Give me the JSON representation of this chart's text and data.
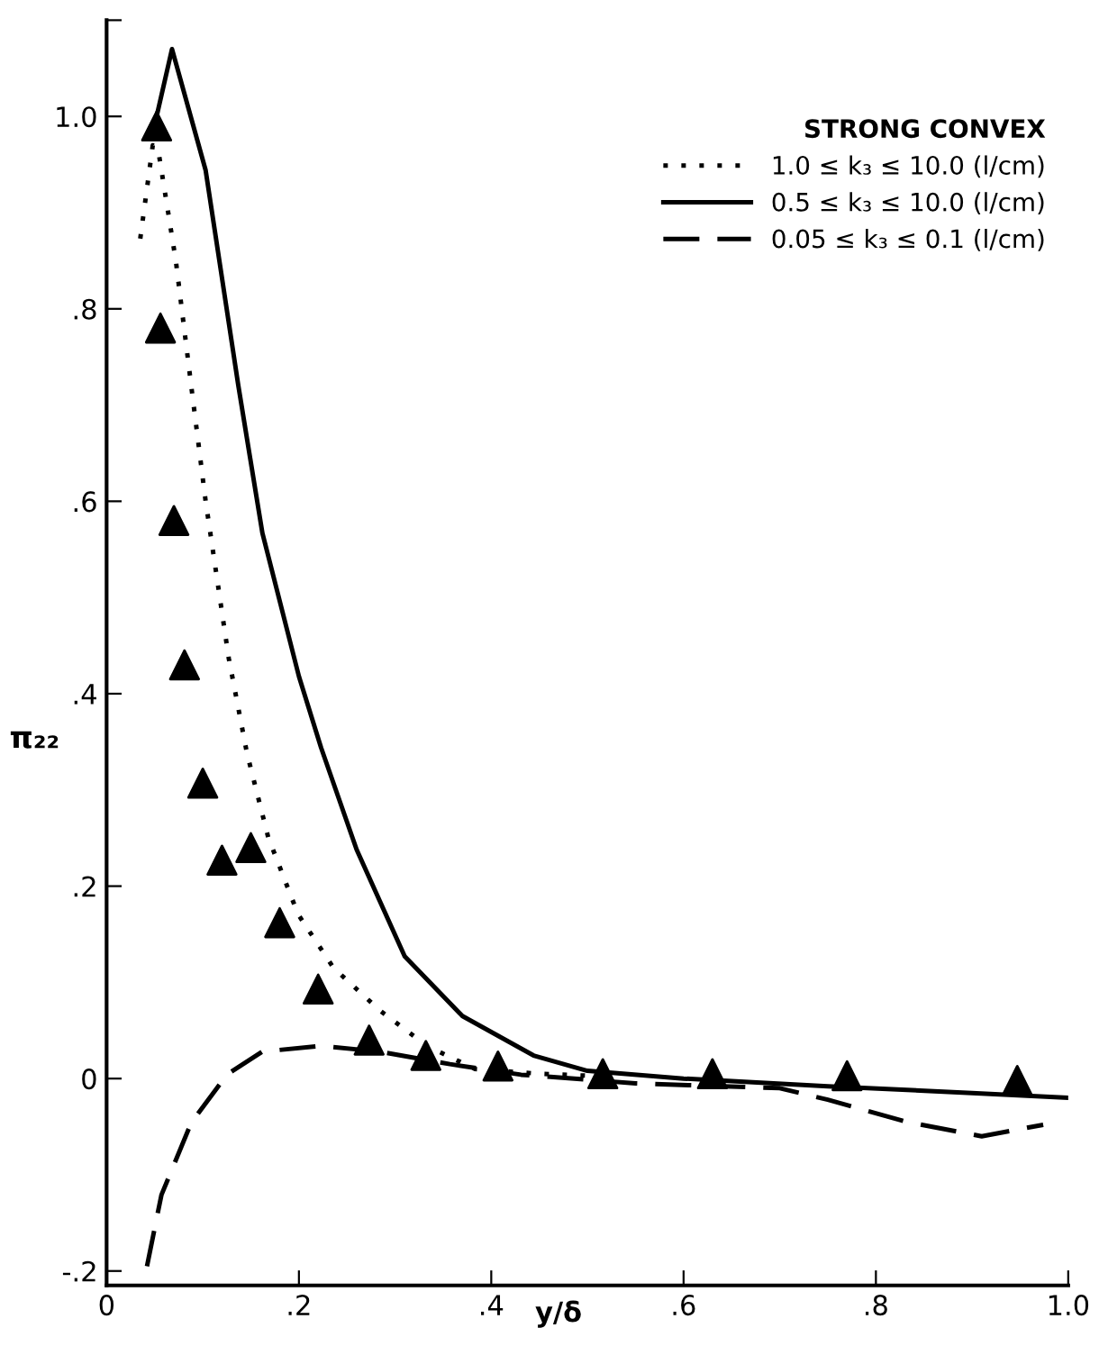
{
  "chart_data": {
    "type": "line",
    "xlabel": "y/δ",
    "ylabel": "π₂₂",
    "legend_title": "STRONG CONVEX",
    "legend": "top right",
    "grid": false,
    "xlim": [
      0,
      1.0
    ],
    "xticks": [
      0,
      {
        "value": 0.2,
        "label": ".2"
      },
      {
        "value": 0.4,
        "label": ".4"
      },
      {
        "value": 0.6,
        "label": ".6"
      },
      {
        "value": 0.8,
        "label": ".8"
      },
      {
        "value": 1.0,
        "label": "1.0"
      }
    ],
    "ylim": [
      -0.215,
      1.1
    ],
    "yticks": [
      {
        "value": -0.2,
        "label": "-.2"
      },
      0,
      {
        "value": 0.2,
        "label": ".2"
      },
      {
        "value": 0.4,
        "label": ".4"
      },
      {
        "value": 0.6,
        "label": ".6"
      },
      {
        "value": 0.8,
        "label": ".8"
      },
      {
        "value": 1.0,
        "label": "1.0"
      },
      {
        "value": 1.1,
        "label": null
      }
    ],
    "series": [
      {
        "name": "1.0 ≤ k₃ ≤ 10.0 (l/cm)",
        "color": "#000000",
        "line_style": "dotted",
        "marker": "none",
        "x": [
          0.035,
          0.048,
          0.054,
          0.072,
          0.088,
          0.103,
          0.127,
          0.146,
          0.168,
          0.199,
          0.236,
          0.284,
          0.333,
          0.383,
          0.45,
          0.5
        ],
        "values": [
          0.873,
          0.97,
          0.963,
          0.85,
          0.72,
          0.6,
          0.437,
          0.338,
          0.251,
          0.171,
          0.115,
          0.071,
          0.034,
          0.01,
          0.005,
          0.003
        ]
      },
      {
        "name": "0.5 ≤ k₃ ≤ 10.0 (l/cm)",
        "color": "#000000",
        "line_style": "solid",
        "marker": "none",
        "x": [
          0.052,
          0.068,
          0.103,
          0.137,
          0.162,
          0.2,
          0.223,
          0.26,
          0.31,
          0.37,
          0.444,
          0.5,
          0.6,
          0.75,
          0.9,
          1.0
        ],
        "values": [
          1.0,
          1.07,
          0.944,
          0.72,
          0.567,
          0.418,
          0.344,
          0.238,
          0.127,
          0.065,
          0.024,
          0.008,
          0.0,
          -0.008,
          -0.015,
          -0.02
        ]
      },
      {
        "name": "0.05 ≤ k₃ ≤ 0.1 (l/cm)",
        "color": "#000000",
        "line_style": "dashed",
        "marker": "none",
        "x": [
          0.042,
          0.057,
          0.088,
          0.125,
          0.162,
          0.223,
          0.284,
          0.357,
          0.431,
          0.55,
          0.7,
          0.75,
          0.832,
          0.91,
          0.974
        ],
        "values": [
          -0.195,
          -0.121,
          -0.046,
          0.004,
          0.028,
          0.034,
          0.028,
          0.015,
          0.004,
          -0.005,
          -0.01,
          -0.022,
          -0.045,
          -0.06,
          -0.048
        ]
      },
      {
        "type": "scatter",
        "color": "#000000",
        "marker": "triangle",
        "x": [
          0.052,
          0.056,
          0.07,
          0.081,
          0.1,
          0.12,
          0.15,
          0.18,
          0.22,
          0.273,
          0.332,
          0.407,
          0.516,
          0.63,
          0.77,
          0.947
        ],
        "values": [
          0.99,
          0.78,
          0.58,
          0.43,
          0.307,
          0.227,
          0.24,
          0.162,
          0.093,
          0.04,
          0.024,
          0.013,
          0.005,
          0.005,
          0.003,
          -0.002
        ]
      }
    ]
  }
}
